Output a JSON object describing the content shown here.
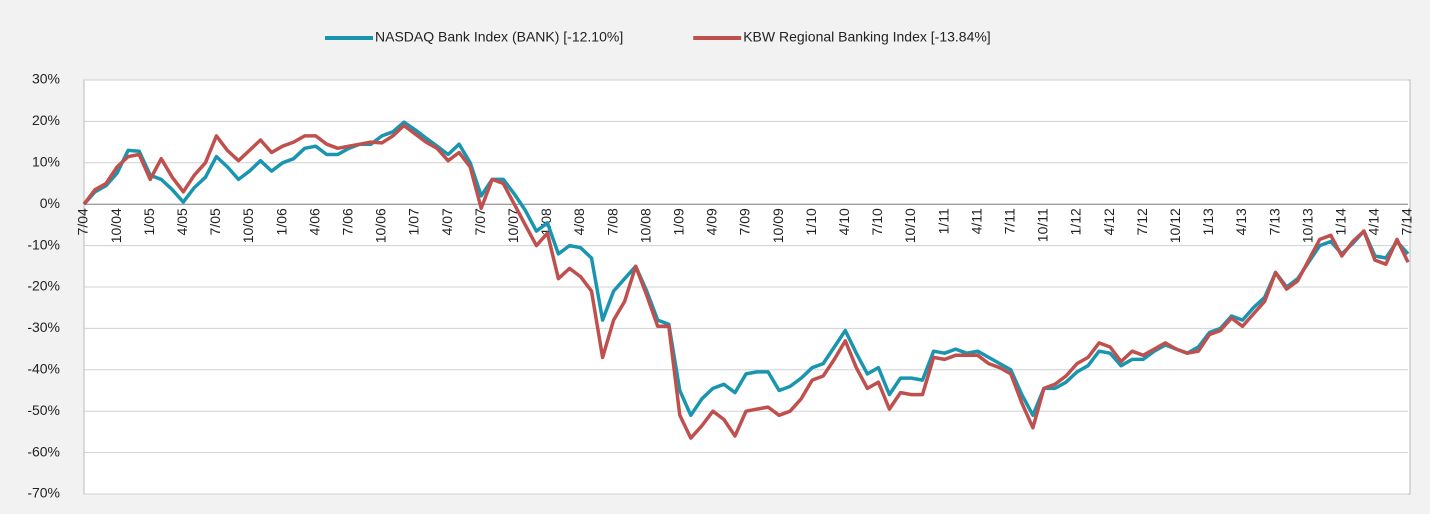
{
  "chart_data": {
    "type": "line",
    "categories": [
      "7/04",
      null,
      null,
      "10/04",
      null,
      null,
      "1/05",
      null,
      null,
      "4/05",
      null,
      null,
      "7/05",
      null,
      null,
      "10/05",
      null,
      null,
      "1/06",
      null,
      null,
      "4/06",
      null,
      null,
      "7/06",
      null,
      null,
      "10/06",
      null,
      null,
      "1/07",
      null,
      null,
      "4/07",
      null,
      null,
      "7/07",
      null,
      null,
      "10/07",
      null,
      null,
      "1/08",
      null,
      null,
      "4/08",
      null,
      null,
      "7/08",
      null,
      null,
      "10/08",
      null,
      null,
      "1/09",
      null,
      null,
      "4/09",
      null,
      null,
      "7/09",
      null,
      null,
      "10/09",
      null,
      null,
      "1/10",
      null,
      null,
      "4/10",
      null,
      null,
      "7/10",
      null,
      null,
      "10/10",
      null,
      null,
      "1/11",
      null,
      null,
      "4/11",
      null,
      null,
      "7/11",
      null,
      null,
      "10/11",
      null,
      null,
      "1/12",
      null,
      null,
      "4/12",
      null,
      null,
      "7/12",
      null,
      null,
      "10/12",
      null,
      null,
      "1/13",
      null,
      null,
      "4/13",
      null,
      null,
      "7/13",
      null,
      null,
      "10/13",
      null,
      null,
      "1/14",
      null,
      null,
      "4/14",
      null,
      null,
      "7/14"
    ],
    "series": [
      {
        "name": "NASDAQ Bank Index (BANK) [-12.10%]",
        "color": "#1a95b0",
        "values": [
          0,
          3,
          4.5,
          7.5,
          13,
          12.8,
          7,
          6,
          3.5,
          0.5,
          4,
          6.5,
          11.5,
          9,
          6,
          8,
          10.5,
          8,
          10,
          11,
          13.5,
          14,
          12,
          12,
          13.5,
          14.5,
          14.5,
          16.5,
          17.5,
          19.8,
          18,
          16,
          14,
          12,
          14.5,
          10,
          2,
          6,
          6,
          2.5,
          -1.5,
          -6.5,
          -4.5,
          -12,
          -10,
          -10.5,
          -13,
          -28,
          -21,
          -18,
          -15,
          -21,
          -28,
          -29,
          -45,
          -51,
          -47,
          -44.5,
          -43.5,
          -45.5,
          -41,
          -40.5,
          -40.5,
          -45,
          -44,
          -42,
          -39.5,
          -38.5,
          -34.5,
          -30.5,
          -36,
          -41,
          -39.5,
          -46,
          -42,
          -42,
          -42.5,
          -35.5,
          -36,
          -35,
          -36,
          -35.5,
          -37,
          -38.5,
          -40,
          -46,
          -51,
          -44.5,
          -44.5,
          -43,
          -40.5,
          -39,
          -35.5,
          -36,
          -39,
          -37.5,
          -37.5,
          -35.5,
          -34,
          -35,
          -36,
          -34.5,
          -31,
          -30,
          -27,
          -28,
          -25,
          -22.5,
          -16.5,
          -20,
          -18,
          -14,
          -10,
          -9,
          -12,
          -9.5,
          -6.5,
          -12.5,
          -13,
          -9,
          -12
        ]
      },
      {
        "name": "KBW Regional Banking Index [-13.84%]",
        "color": "#c0504d",
        "values": [
          0,
          3.5,
          5,
          9,
          11.5,
          12,
          6,
          11,
          6.5,
          3,
          7,
          10,
          16.5,
          13,
          10.5,
          13,
          15.5,
          12.5,
          14,
          15,
          16.5,
          16.5,
          14.5,
          13.5,
          14,
          14.5,
          15,
          14.8,
          16.5,
          19,
          17,
          15,
          13.5,
          10.5,
          12.5,
          9,
          -1,
          6,
          5,
          0,
          -5,
          -10,
          -7,
          -18,
          -15.5,
          -17.5,
          -21,
          -37,
          -28,
          -23.5,
          -15,
          -22,
          -29.5,
          -29.5,
          -51,
          -56.5,
          -53.5,
          -50,
          -52,
          -56,
          -50,
          -49.5,
          -49,
          -51,
          -50,
          -47,
          -42.5,
          -41.5,
          -37.5,
          -33,
          -39.5,
          -44.5,
          -43,
          -49.5,
          -45.5,
          -46,
          -46,
          -37,
          -37.5,
          -36.5,
          -36.5,
          -36.5,
          -38.5,
          -39.5,
          -41,
          -48,
          -54,
          -44.5,
          -43.5,
          -41.5,
          -38.5,
          -37,
          -33.5,
          -34.5,
          -38,
          -35.5,
          -36.5,
          -35,
          -33.5,
          -35,
          -36,
          -35.5,
          -31.5,
          -30.5,
          -27.5,
          -29.5,
          -26.5,
          -23.5,
          -16.5,
          -20.5,
          -18.5,
          -13.5,
          -8.5,
          -7.5,
          -12.5,
          -9,
          -6.5,
          -13.5,
          -14.5,
          -8.5,
          -14
        ]
      }
    ],
    "ylim": [
      -70,
      30
    ],
    "yticks": [
      {
        "value": -70,
        "label": "-70%"
      },
      {
        "value": -60,
        "label": "-60%"
      },
      {
        "value": -50,
        "label": "-50%"
      },
      {
        "value": -40,
        "label": "-40%"
      },
      {
        "value": -30,
        "label": "-30%"
      },
      {
        "value": -20,
        "label": "-20%"
      },
      {
        "value": -10,
        "label": "-10%"
      },
      {
        "value": 0,
        "label": "0%"
      },
      {
        "value": 10,
        "label": "10%"
      },
      {
        "value": 20,
        "label": "20%"
      },
      {
        "value": 30,
        "label": "30%"
      }
    ],
    "grid": true,
    "legend": "top"
  }
}
